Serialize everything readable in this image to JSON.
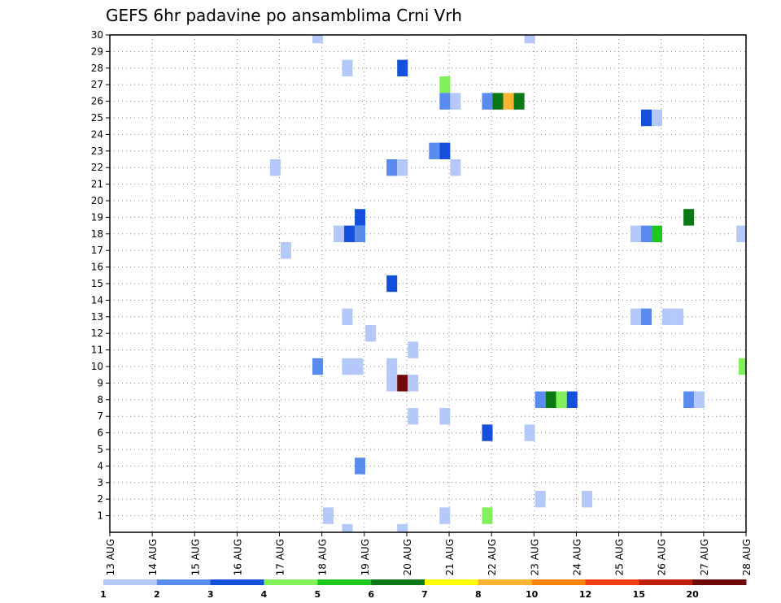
{
  "chart_data": {
    "type": "heatmap",
    "title": "GEFS 6hr padavine po ansamblima Crni Vrh",
    "x_tick_labels": [
      "13 AUG",
      "14 AUG",
      "15 AUG",
      "16 AUG",
      "17 AUG",
      "18 AUG",
      "19 AUG",
      "20 AUG",
      "21 AUG",
      "22 AUG",
      "23 AUG",
      "24 AUG",
      "25 AUG",
      "26 AUG",
      "27 AUG",
      "28 AUG"
    ],
    "y_tick_labels": [
      "1",
      "2",
      "3",
      "4",
      "5",
      "6",
      "7",
      "8",
      "9",
      "10",
      "11",
      "12",
      "13",
      "14",
      "15",
      "16",
      "17",
      "18",
      "19",
      "20",
      "21",
      "22",
      "23",
      "24",
      "25",
      "26",
      "27",
      "28",
      "29",
      "30"
    ],
    "xlim_days": [
      0,
      15
    ],
    "ylim": [
      0,
      30
    ],
    "grid": true,
    "colorbar": {
      "labels": [
        "1",
        "2",
        "3",
        "4",
        "5",
        "6",
        "7",
        "8",
        "10",
        "12",
        "15",
        "20"
      ],
      "colors": [
        "#b4c8fa",
        "#5a8cf0",
        "#1450dc",
        "#82f05a",
        "#1ec81e",
        "#0a7814",
        "#ffff00",
        "#fab432",
        "#ff8200",
        "#f03c14",
        "#be1e0a",
        "#6e0a0a"
      ]
    },
    "points": [
      {
        "t": 4.9,
        "m": 30,
        "v": 1
      },
      {
        "t": 9.9,
        "m": 30,
        "v": 1
      },
      {
        "t": 5.6,
        "m": 28,
        "v": 1
      },
      {
        "t": 6.9,
        "m": 28,
        "v": 3
      },
      {
        "t": 7.9,
        "m": 27,
        "v": 4
      },
      {
        "t": 7.9,
        "m": 26,
        "v": 2
      },
      {
        "t": 8.15,
        "m": 26,
        "v": 1
      },
      {
        "t": 8.9,
        "m": 26,
        "v": 2
      },
      {
        "t": 9.15,
        "m": 26,
        "v": 6
      },
      {
        "t": 9.4,
        "m": 26,
        "v": 8
      },
      {
        "t": 9.65,
        "m": 26,
        "v": 6
      },
      {
        "t": 12.65,
        "m": 25,
        "v": 3
      },
      {
        "t": 12.9,
        "m": 25,
        "v": 1
      },
      {
        "t": 7.65,
        "m": 23,
        "v": 2
      },
      {
        "t": 7.9,
        "m": 23,
        "v": 3
      },
      {
        "t": 3.9,
        "m": 22,
        "v": 1
      },
      {
        "t": 6.65,
        "m": 22,
        "v": 2
      },
      {
        "t": 6.9,
        "m": 22,
        "v": 1
      },
      {
        "t": 8.15,
        "m": 22,
        "v": 1
      },
      {
        "t": 5.9,
        "m": 19,
        "v": 3
      },
      {
        "t": 13.65,
        "m": 19,
        "v": 6
      },
      {
        "t": 5.4,
        "m": 18,
        "v": 1
      },
      {
        "t": 5.65,
        "m": 18,
        "v": 3
      },
      {
        "t": 5.9,
        "m": 18,
        "v": 2
      },
      {
        "t": 12.4,
        "m": 18,
        "v": 1
      },
      {
        "t": 12.65,
        "m": 18,
        "v": 2
      },
      {
        "t": 12.9,
        "m": 18,
        "v": 5
      },
      {
        "t": 14.9,
        "m": 18,
        "v": 1
      },
      {
        "t": 4.15,
        "m": 17,
        "v": 1
      },
      {
        "t": 6.65,
        "m": 15,
        "v": 3
      },
      {
        "t": 5.6,
        "m": 13,
        "v": 1
      },
      {
        "t": 12.4,
        "m": 13,
        "v": 1
      },
      {
        "t": 12.65,
        "m": 13,
        "v": 2
      },
      {
        "t": 13.15,
        "m": 13,
        "v": 1
      },
      {
        "t": 13.4,
        "m": 13,
        "v": 1
      },
      {
        "t": 6.15,
        "m": 12,
        "v": 1
      },
      {
        "t": 7.15,
        "m": 11,
        "v": 1
      },
      {
        "t": 4.9,
        "m": 10,
        "v": 2
      },
      {
        "t": 5.6,
        "m": 10,
        "v": 1
      },
      {
        "t": 5.85,
        "m": 10,
        "v": 1
      },
      {
        "t": 6.65,
        "m": 10,
        "v": 1
      },
      {
        "t": 14.95,
        "m": 10,
        "v": 4
      },
      {
        "t": 6.65,
        "m": 9,
        "v": 1
      },
      {
        "t": 6.9,
        "m": 9,
        "v": 20
      },
      {
        "t": 7.15,
        "m": 9,
        "v": 1
      },
      {
        "t": 10.15,
        "m": 8,
        "v": 2
      },
      {
        "t": 10.4,
        "m": 8,
        "v": 6
      },
      {
        "t": 10.65,
        "m": 8,
        "v": 4
      },
      {
        "t": 10.9,
        "m": 8,
        "v": 3
      },
      {
        "t": 13.65,
        "m": 8,
        "v": 2
      },
      {
        "t": 13.9,
        "m": 8,
        "v": 1
      },
      {
        "t": 7.15,
        "m": 7,
        "v": 1
      },
      {
        "t": 7.9,
        "m": 7,
        "v": 1
      },
      {
        "t": 8.9,
        "m": 6,
        "v": 3
      },
      {
        "t": 9.9,
        "m": 6,
        "v": 1
      },
      {
        "t": 5.9,
        "m": 4,
        "v": 2
      },
      {
        "t": 10.15,
        "m": 2,
        "v": 1
      },
      {
        "t": 11.25,
        "m": 2,
        "v": 1
      },
      {
        "t": 5.15,
        "m": 1,
        "v": 1
      },
      {
        "t": 7.9,
        "m": 1,
        "v": 1
      },
      {
        "t": 8.9,
        "m": 1,
        "v": 4
      },
      {
        "t": 5.6,
        "m": 0,
        "v": 1
      },
      {
        "t": 6.9,
        "m": 0,
        "v": 1
      }
    ]
  }
}
